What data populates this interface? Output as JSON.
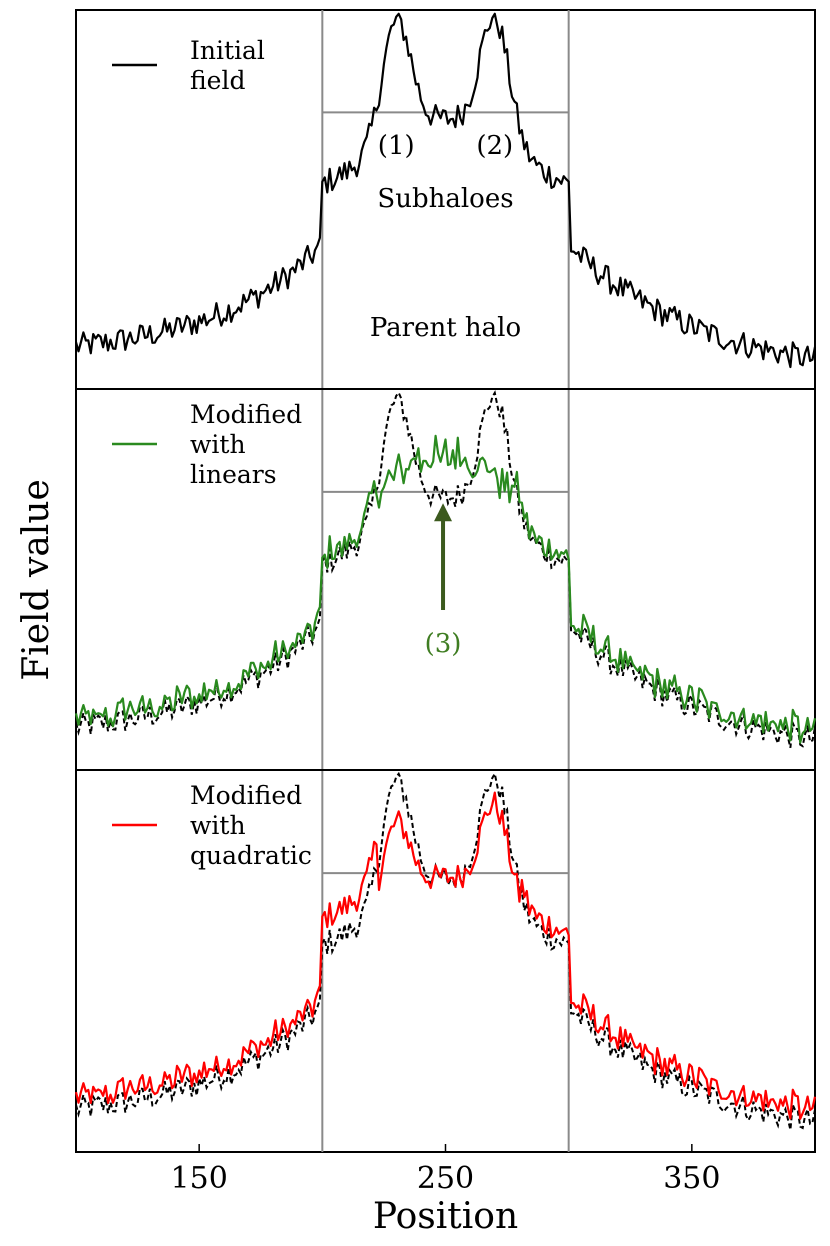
{
  "chart_data": {
    "type": "line",
    "xlabel": "Position",
    "ylabel": "Field value",
    "xlim": [
      100,
      400
    ],
    "xticks": [
      150,
      250,
      350
    ],
    "parent_halo_bounds": [
      200,
      300
    ],
    "subhalo_threshold_bounds": [
      200,
      300
    ],
    "panels": [
      {
        "legend": "Initial\nfield",
        "legend_color": "#000000",
        "series": [
          {
            "name": "Initial field",
            "color": "#000000",
            "style": "solid",
            "ref": "base"
          }
        ],
        "threshold_level": 0.73,
        "annotations": [
          {
            "label": "(1)",
            "x": 230,
            "y": 0.62
          },
          {
            "label": "(2)",
            "x": 270,
            "y": 0.62
          },
          {
            "label": "Subhaloes",
            "x": 250,
            "y": 0.48
          },
          {
            "label": "Parent halo",
            "x": 250,
            "y": 0.14
          }
        ]
      },
      {
        "legend": "Modified\nwith\nlinears",
        "legend_color": "#2a8a1f",
        "series": [
          {
            "name": "Modified with linears",
            "color": "#2a8a1f",
            "style": "solid",
            "ref": "linears"
          },
          {
            "name": "Initial field",
            "color": "#000000",
            "style": "dashed",
            "ref": "base"
          }
        ],
        "threshold_level": 0.73,
        "annotations": [
          {
            "label": "(3)",
            "x": 249,
            "y": 0.31,
            "color": "#3f7d22",
            "arrow": {
              "x": 249,
              "from": 0.42,
              "to": 0.7,
              "color": "#3c5a1e"
            }
          }
        ]
      },
      {
        "legend": "Modified\nwith\nquadratic",
        "legend_color": "#ff0000",
        "series": [
          {
            "name": "Modified with quadratic",
            "color": "#ff0000",
            "style": "solid",
            "ref": "quadratic"
          },
          {
            "name": "Initial field",
            "color": "#000000",
            "style": "dashed",
            "ref": "base"
          }
        ],
        "threshold_level": 0.73,
        "annotations": []
      }
    ]
  }
}
